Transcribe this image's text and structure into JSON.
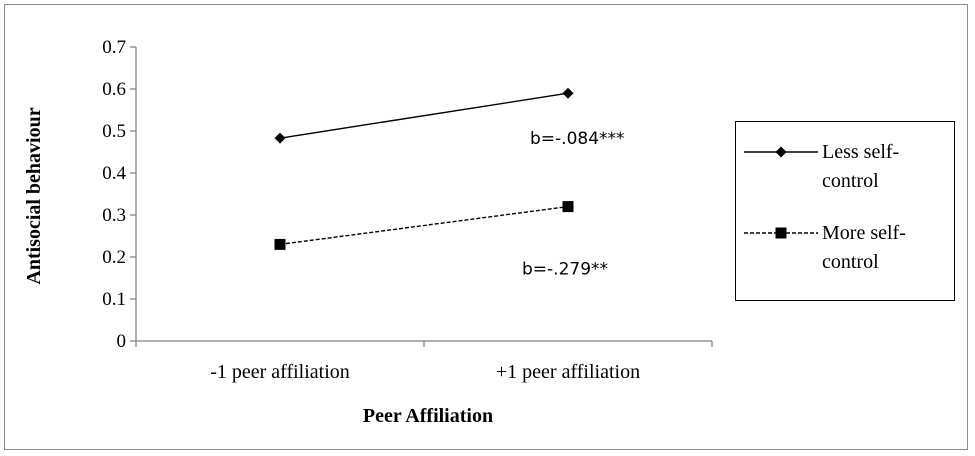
{
  "chart_data": {
    "type": "line",
    "title": "",
    "xlabel": "Peer Affiliation",
    "ylabel": "Antisocial behaviour",
    "categories": [
      "-1 peer affiliation",
      "+1 peer affiliation"
    ],
    "ylim": [
      0,
      0.7
    ],
    "yticks": [
      "0",
      "0.1",
      "0.2",
      "0.3",
      "0.4",
      "0.5",
      "0.6",
      "0.7"
    ],
    "grid": false,
    "legend_position": "right",
    "series": [
      {
        "name": "Less self-control",
        "legend_lines": [
          "Less self-",
          "control"
        ],
        "values": [
          0.483,
          0.59
        ],
        "marker": "diamond",
        "line_style": "solid",
        "annotation": "b=-.084***",
        "color": "#000000"
      },
      {
        "name": "More self-control",
        "legend_lines": [
          "More self-",
          "control"
        ],
        "values": [
          0.23,
          0.32
        ],
        "marker": "square",
        "line_style": "dashed",
        "annotation": "b=-.279**",
        "color": "#000000"
      }
    ]
  }
}
